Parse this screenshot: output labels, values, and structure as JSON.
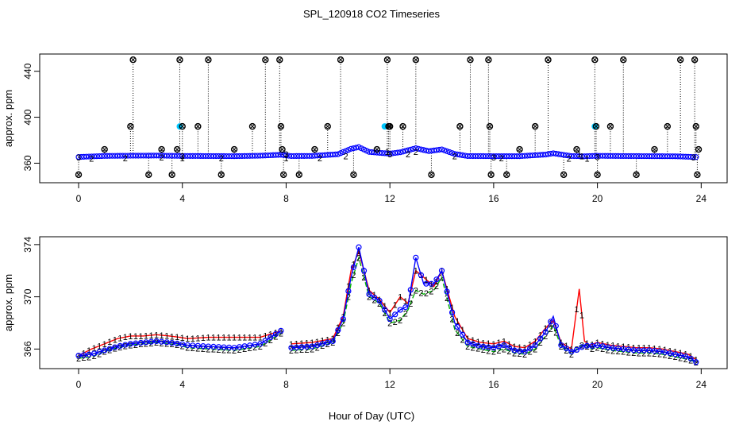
{
  "figure": {
    "title": "SPL_120918  CO2 Timeseries",
    "xlabel": "Hour of Day (UTC)"
  },
  "colors": {
    "series1": "#ff0000",
    "series2": "#00b000",
    "series3": "#0000ff",
    "fill": "#00c8ff",
    "axis": "#000000"
  },
  "chart_data": [
    {
      "type": "scatter",
      "panel": "top",
      "ylabel": "approx. ppm",
      "xlim": [
        -1.5,
        25
      ],
      "ylim": [
        343,
        455
      ],
      "xticks": [
        0,
        4,
        8,
        12,
        16,
        20,
        24
      ],
      "yticks": [
        360,
        400,
        440
      ],
      "clip_high": 450,
      "clip_low": 350,
      "series": [
        {
          "name": "1",
          "color": "#ff0000",
          "x": [
            4.0,
            8.0,
            11.9,
            19.3,
            19.4,
            19.6
          ],
          "y": [
            364.5,
            364.5,
            370,
            368,
            366,
            364
          ]
        },
        {
          "name": "2",
          "color": "#00b000",
          "x": [
            0.5,
            1.8,
            3.2,
            5.5,
            9.3,
            10.3,
            12.7,
            13.0,
            14.5,
            16.3,
            18.9
          ],
          "y": [
            364,
            364.5,
            365,
            364.5,
            364.5,
            366,
            368,
            370,
            366,
            364.5,
            364
          ]
        },
        {
          "name": "3",
          "color": "#0000ff",
          "x": [
            0,
            4,
            8,
            12,
            16,
            20,
            23.7
          ],
          "y": [
            365,
            366,
            368,
            368,
            365,
            365.5,
            365
          ]
        }
      ],
      "base_profile": {
        "x": [
          0,
          1,
          2,
          3,
          4,
          5,
          6,
          7,
          7.8,
          8.2,
          9,
          10,
          10.5,
          10.8,
          11.2,
          11.6,
          12,
          12.4,
          13,
          13.5,
          14,
          14.5,
          15,
          16,
          17,
          18,
          18.3,
          19,
          19.5,
          20,
          21,
          22,
          23,
          23.9
        ],
        "y": [
          365.4,
          366.3,
          366.5,
          366.6,
          366.3,
          366.2,
          366.1,
          366.5,
          367.3,
          366.2,
          366.3,
          367.8,
          372.5,
          374,
          369.8,
          369,
          368.3,
          369.5,
          373,
          370.5,
          372,
          368,
          366.2,
          366.1,
          366.1,
          367.5,
          368.6,
          366.2,
          366,
          366.4,
          366.2,
          366.1,
          366.0,
          365.2
        ]
      },
      "spikes_x": [
        0,
        1,
        2,
        2.1,
        2.7,
        3.2,
        3.6,
        3.8,
        3.9,
        4.0,
        4.6,
        5.0,
        5.5,
        6.0,
        6.7,
        7.2,
        7.75,
        7.8,
        7.85,
        7.9,
        8.5,
        9.1,
        9.6,
        10.1,
        10.6,
        11.5,
        11.9,
        11.95,
        12.0,
        12.5,
        13.0,
        13.6,
        14.7,
        15.1,
        15.8,
        15.85,
        15.9,
        16.5,
        17.0,
        17.6,
        18.1,
        18.7,
        19.2,
        19.9,
        19.95,
        20.0,
        20.5,
        21.0,
        21.5,
        22.2,
        22.7,
        23.2,
        23.75,
        23.8,
        23.85,
        23.9
      ],
      "spikes_y": [
        350,
        372,
        392,
        450,
        350,
        372,
        350,
        372,
        450,
        392,
        392,
        450,
        350,
        372,
        392,
        450,
        450,
        392,
        372,
        350,
        350,
        372,
        392,
        450,
        350,
        372,
        450,
        392,
        392,
        392,
        450,
        350,
        392,
        450,
        450,
        392,
        350,
        350,
        372,
        392,
        450,
        350,
        372,
        450,
        392,
        350,
        392,
        450,
        350,
        372,
        392,
        450,
        450,
        392,
        350,
        372
      ],
      "filled_marks": {
        "x": [
          3.9,
          11.8,
          19.9
        ],
        "y": [
          392,
          392,
          392
        ]
      }
    },
    {
      "type": "line",
      "panel": "bottom",
      "ylabel": "approx. ppm",
      "xlim": [
        -1.5,
        25
      ],
      "ylim": [
        364.5,
        374.6
      ],
      "xticks": [
        0,
        4,
        8,
        12,
        16,
        20,
        24
      ],
      "yticks": [
        366,
        370,
        374
      ],
      "series": [
        {
          "name": "1",
          "label": "1",
          "color": "#ff0000",
          "x": [
            0,
            0.5,
            1.0,
            1.5,
            2.0,
            2.5,
            3.0,
            3.5,
            3.9,
            4.2,
            5.0,
            6.0,
            7.0,
            7.8,
            8.2,
            9.0,
            9.8,
            10.2,
            10.5,
            10.8,
            11.2,
            11.6,
            12.0,
            12.4,
            12.7,
            13.0,
            13.3,
            13.7,
            14.0,
            14.5,
            15.0,
            15.5,
            16.0,
            16.4,
            16.8,
            17.2,
            17.6,
            18.0,
            18.3,
            18.6,
            19.0,
            19.3,
            19.5,
            19.7,
            20.0,
            20.5,
            21.0,
            21.5,
            22.0,
            22.5,
            23.0,
            23.5,
            23.8
          ],
          "y": [
            365.5,
            366.0,
            366.4,
            366.8,
            367.0,
            367.0,
            367.1,
            367.0,
            366.9,
            366.8,
            366.9,
            366.9,
            366.9,
            367.4,
            366.4,
            366.5,
            366.8,
            368.5,
            372.0,
            373.5,
            370.5,
            369.8,
            368.8,
            370.0,
            369.5,
            372.0,
            371.5,
            370.8,
            372.0,
            368.5,
            366.8,
            366.5,
            366.4,
            366.6,
            366.2,
            366.1,
            366.6,
            367.6,
            368.2,
            366.5,
            366.0,
            370.6,
            366.6,
            366.3,
            366.5,
            366.3,
            366.2,
            366.1,
            366.1,
            366.0,
            365.8,
            365.6,
            365.2
          ]
        },
        {
          "name": "2",
          "label": "2",
          "color": "#00b000",
          "x": [
            0,
            0.5,
            1.0,
            1.5,
            2.0,
            2.5,
            3.0,
            3.5,
            3.9,
            4.2,
            5.0,
            6.0,
            7.0,
            7.8,
            8.2,
            9.0,
            9.8,
            10.2,
            10.5,
            10.8,
            11.2,
            11.6,
            12.0,
            12.4,
            12.7,
            13.0,
            13.3,
            13.7,
            14.0,
            14.5,
            15.0,
            15.5,
            16.0,
            16.4,
            16.8,
            17.2,
            17.6,
            18.0,
            18.3,
            18.6,
            19.0,
            19.3,
            19.5,
            19.7,
            20.0,
            20.5,
            21.0,
            21.5,
            22.0,
            22.5,
            23.0,
            23.5,
            23.8
          ],
          "y": [
            365.3,
            365.4,
            365.8,
            366.1,
            366.3,
            366.4,
            366.5,
            366.4,
            366.3,
            366.1,
            366.0,
            365.9,
            366.2,
            367.2,
            365.9,
            366.0,
            366.5,
            368.0,
            371.0,
            373.0,
            370.0,
            369.5,
            368.0,
            368.2,
            369.0,
            370.5,
            370.2,
            370.5,
            371.5,
            367.5,
            366.2,
            366.0,
            365.8,
            366.0,
            365.7,
            365.6,
            366.0,
            367.0,
            367.8,
            366.2,
            365.6,
            366.2,
            366.4,
            366.0,
            366.1,
            365.9,
            365.8,
            365.7,
            365.7,
            365.6,
            365.4,
            365.2,
            365.0
          ]
        },
        {
          "name": "3",
          "label": "3",
          "color": "#0000ff",
          "x": [
            0,
            0.5,
            1.0,
            1.5,
            2.0,
            2.5,
            3.0,
            3.5,
            3.9,
            4.2,
            5.0,
            6.0,
            7.0,
            7.8,
            8.2,
            9.0,
            9.8,
            10.2,
            10.5,
            10.8,
            11.2,
            11.6,
            12.0,
            12.4,
            12.7,
            13.0,
            13.3,
            13.7,
            14.0,
            14.5,
            15.0,
            15.5,
            16.0,
            16.4,
            16.8,
            17.2,
            17.6,
            18.0,
            18.3,
            18.6,
            19.0,
            19.3,
            19.5,
            19.7,
            20.0,
            20.5,
            21.0,
            21.5,
            22.0,
            22.5,
            23.0,
            23.5,
            23.8
          ],
          "y": [
            365.5,
            365.6,
            365.9,
            366.2,
            366.4,
            366.5,
            366.6,
            366.5,
            366.4,
            366.3,
            366.2,
            366.1,
            366.4,
            367.4,
            366.1,
            366.2,
            366.6,
            368.3,
            371.5,
            373.8,
            370.2,
            369.7,
            368.3,
            369.0,
            369.3,
            373.0,
            371.0,
            371.0,
            372.0,
            368.0,
            366.5,
            366.2,
            366.1,
            366.3,
            365.9,
            365.8,
            366.3,
            367.3,
            368.5,
            366.3,
            365.8,
            366.0,
            366.3,
            366.2,
            366.3,
            366.1,
            366.0,
            365.9,
            365.9,
            365.8,
            365.6,
            365.4,
            365.0
          ]
        }
      ]
    }
  ]
}
